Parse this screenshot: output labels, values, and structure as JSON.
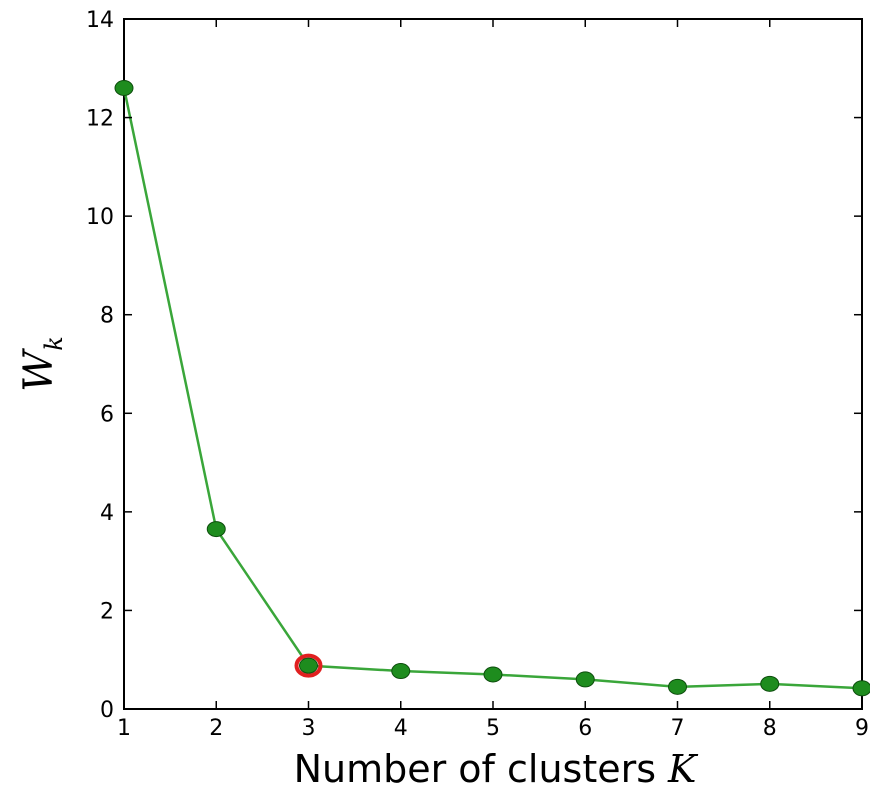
{
  "chart_data": {
    "type": "line",
    "title": "",
    "xlabel": "Number of clusters",
    "xlabel_var": "K",
    "ylabel": "W",
    "ylabel_sub": "k",
    "xlim": [
      1,
      9
    ],
    "ylim": [
      0,
      14
    ],
    "xticks": [
      1,
      2,
      3,
      4,
      5,
      6,
      7,
      8,
      9
    ],
    "yticks": [
      0,
      2,
      4,
      6,
      8,
      10,
      12,
      14
    ],
    "grid": false,
    "line_color": "#3aa63a",
    "marker_color": "#1e8c1e",
    "highlight_color": "#e02020",
    "highlight_x": 3,
    "series": [
      {
        "x": [
          1,
          2,
          3,
          4,
          5,
          6,
          7,
          8,
          9
        ],
        "values": [
          12.6,
          3.65,
          0.88,
          0.77,
          0.7,
          0.6,
          0.45,
          0.51,
          0.42
        ]
      }
    ]
  }
}
